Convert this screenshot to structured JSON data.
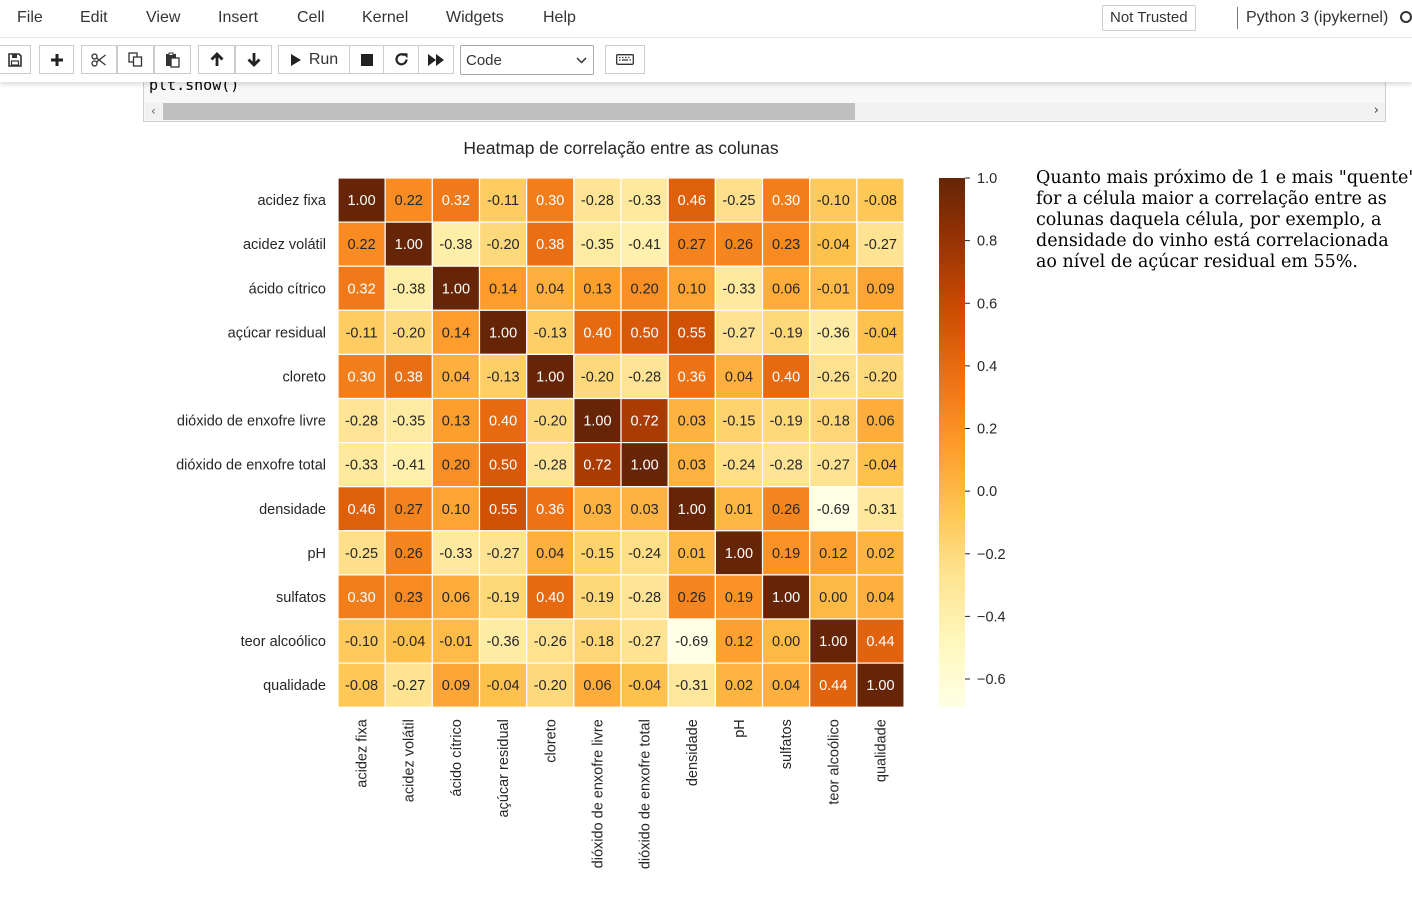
{
  "menubar": {
    "items": [
      "File",
      "Edit",
      "View",
      "Insert",
      "Cell",
      "Kernel",
      "Widgets",
      "Help"
    ],
    "trust_badge": "Not Trusted",
    "kernel_name": "Python 3 (ipykernel)"
  },
  "toolbar": {
    "icons": [
      "save-icon",
      "add-cell-icon",
      "cut-icon",
      "copy-icon",
      "paste-icon",
      "move-up-icon",
      "move-down-icon",
      "run-icon",
      "stop-icon",
      "restart-icon",
      "fast-forward-icon",
      "keyboard-icon"
    ],
    "run_label": "Run",
    "cell_type": "Code"
  },
  "cell": {
    "code_visible": "plt.show()"
  },
  "note": {
    "lines": [
      "Quanto mais próximo de 1 e mais \"quente\"",
      "for a célula maior a correlação entre as",
      "colunas daquela célula, por exemplo, a",
      "densidade do vinho está correlacionada",
      "ao nível de açúcar residual em 55%."
    ]
  },
  "chart_data": {
    "type": "heatmap",
    "title": "Heatmap de correlação entre as colunas",
    "labels": [
      "acidez fixa",
      "acidez volátil",
      "ácido cítrico",
      "açúcar residual",
      "cloreto",
      "dióxido de enxofre livre",
      "dióxido de enxofre total",
      "densidade",
      "pH",
      "sulfatos",
      "teor alcoólico",
      "qualidade"
    ],
    "values": [
      [
        1.0,
        0.22,
        0.32,
        -0.11,
        0.3,
        -0.28,
        -0.33,
        0.46,
        -0.25,
        0.3,
        -0.1,
        -0.08
      ],
      [
        0.22,
        1.0,
        -0.38,
        -0.2,
        0.38,
        -0.35,
        -0.41,
        0.27,
        0.26,
        0.23,
        -0.04,
        -0.27
      ],
      [
        0.32,
        -0.38,
        1.0,
        0.14,
        0.04,
        0.13,
        0.2,
        0.1,
        -0.33,
        0.06,
        -0.01,
        0.09
      ],
      [
        -0.11,
        -0.2,
        0.14,
        1.0,
        -0.13,
        0.4,
        0.5,
        0.55,
        -0.27,
        -0.19,
        -0.36,
        -0.04
      ],
      [
        0.3,
        0.38,
        0.04,
        -0.13,
        1.0,
        -0.2,
        -0.28,
        0.36,
        0.04,
        0.4,
        -0.26,
        -0.2
      ],
      [
        -0.28,
        -0.35,
        0.13,
        0.4,
        -0.2,
        1.0,
        0.72,
        0.03,
        -0.15,
        -0.19,
        -0.18,
        0.06
      ],
      [
        -0.33,
        -0.41,
        0.2,
        0.5,
        -0.28,
        0.72,
        1.0,
        0.03,
        -0.24,
        -0.28,
        -0.27,
        -0.04
      ],
      [
        0.46,
        0.27,
        0.1,
        0.55,
        0.36,
        0.03,
        0.03,
        1.0,
        0.01,
        0.26,
        -0.69,
        -0.31
      ],
      [
        -0.25,
        0.26,
        -0.33,
        -0.27,
        0.04,
        -0.15,
        -0.24,
        0.01,
        1.0,
        0.19,
        0.12,
        0.02
      ],
      [
        0.3,
        0.23,
        0.06,
        -0.19,
        0.4,
        -0.19,
        -0.28,
        0.26,
        0.19,
        1.0,
        -0.0,
        0.04
      ],
      [
        -0.1,
        -0.04,
        -0.01,
        -0.36,
        -0.26,
        -0.18,
        -0.27,
        -0.69,
        0.12,
        -0.0,
        1.0,
        0.44
      ],
      [
        -0.08,
        -0.27,
        0.09,
        -0.04,
        -0.2,
        0.06,
        -0.04,
        -0.31,
        0.02,
        0.04,
        0.44,
        1.0
      ]
    ],
    "colormap": "YlOrBr",
    "vmin": -0.69,
    "vmax": 1.0,
    "colorbar_ticks": [
      "1.0",
      "0.8",
      "0.6",
      "0.4",
      "0.2",
      "0.0",
      "−0.2",
      "−0.4",
      "−0.6"
    ],
    "colorbar_tick_values": [
      1.0,
      0.8,
      0.6,
      0.4,
      0.2,
      0.0,
      -0.2,
      -0.4,
      -0.6
    ],
    "annotations": true,
    "cell_separator_color": "#ffffff"
  }
}
